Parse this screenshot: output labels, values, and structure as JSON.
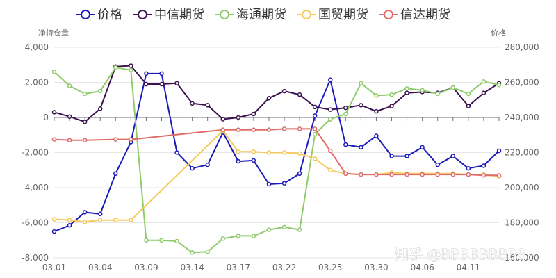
{
  "chart_data": {
    "type": "line",
    "x_tick_labels": [
      "03.01",
      "03.04",
      "03.09",
      "03.14",
      "03.17",
      "03.22",
      "03.25",
      "03.30",
      "04.06",
      "04.11"
    ],
    "left_axis": {
      "name": "净持仓量",
      "ylim": [
        -8000,
        4000
      ],
      "ticks": [
        "4,000",
        "2,000",
        "0",
        "-2,000",
        "-4,000",
        "-6,000",
        "-8,000"
      ]
    },
    "right_axis": {
      "name": "价格",
      "ylim": [
        160000,
        280000
      ],
      "ticks": [
        "280,000",
        "260,000",
        "240,000",
        "220,000",
        "200,000",
        "180,000",
        "160,000"
      ]
    },
    "legend_position": "top",
    "series": [
      {
        "name": "价格",
        "axis": "right",
        "color": "#1a1ab8",
        "values": [
          175000,
          178500,
          186000,
          185000,
          208000,
          226000,
          265000,
          265000,
          220000,
          211000,
          213000,
          231500,
          215000,
          215500,
          202000,
          202500,
          208000,
          241000,
          261500,
          224500,
          223000,
          229500,
          218000,
          218000,
          223000,
          213000,
          218000,
          211000,
          212500,
          221000
        ]
      },
      {
        "name": "中信期货",
        "axis": "left",
        "color": "#3b1150",
        "values": [
          300,
          50,
          -250,
          500,
          2900,
          2950,
          1900,
          1900,
          1950,
          800,
          700,
          -100,
          0,
          200,
          1100,
          1500,
          1300,
          600,
          450,
          550,
          700,
          350,
          650,
          1400,
          1450,
          1400,
          1700,
          650,
          1400,
          1950
        ]
      },
      {
        "name": "海通期货",
        "axis": "left",
        "color": "#8ecb6a",
        "values": [
          2600,
          1800,
          1350,
          1500,
          2850,
          2700,
          -7000,
          -7000,
          -7050,
          -7700,
          -7650,
          -6900,
          -6750,
          -6750,
          -6400,
          -6250,
          -6400,
          -950,
          -100,
          200,
          1950,
          1250,
          1300,
          1650,
          1550,
          1350,
          1700,
          1350,
          2050,
          1850
        ]
      },
      {
        "name": "国贸期货",
        "axis": "left",
        "color": "#f5c95c",
        "values": [
          -5800,
          -5850,
          -5950,
          -5850,
          -5850,
          -5850,
          null,
          null,
          null,
          null,
          null,
          -750,
          -1950,
          -1950,
          -2000,
          -2000,
          -2050,
          -2350,
          -3000,
          -3200,
          -3250,
          -3250,
          -3150,
          -3200,
          -3200,
          -3200,
          -3200,
          -3250,
          -3250,
          -3350
        ]
      },
      {
        "name": "信达期货",
        "axis": "left",
        "color": "#e06b68",
        "values": [
          -1250,
          -1300,
          -1300,
          null,
          -1250,
          -1250,
          null,
          null,
          null,
          null,
          null,
          -700,
          -700,
          -700,
          -700,
          -650,
          -650,
          -650,
          -1900,
          -3200,
          -3250,
          -3250,
          -3250,
          -3250,
          -3250,
          -3250,
          -3250,
          -3250,
          -3300,
          -3300
        ]
      }
    ]
  },
  "watermark": {
    "text": "知乎 @BBBBBBBB8"
  }
}
